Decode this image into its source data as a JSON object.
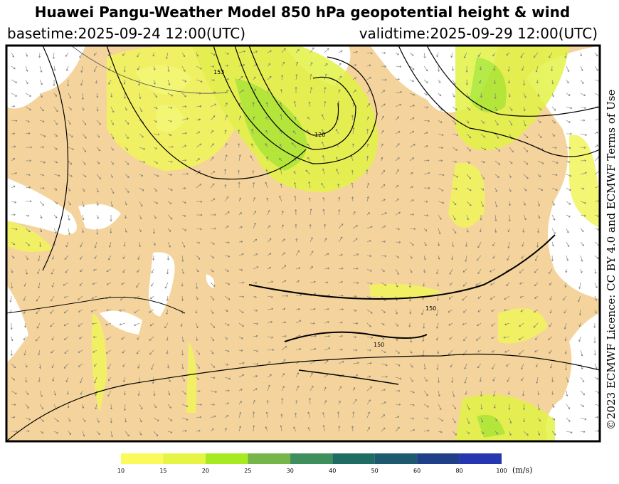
{
  "header": {
    "title": "Huawei Pangu-Weather Model 850 hPa geopotential height & wind",
    "basetime": "basetime:2025-09-24 12:00(UTC)",
    "validtime": "validtime:2025-09-29 12:00(UTC)"
  },
  "licence": "©2023 ECMWF Licence: CC BY 4.0 and ECMWF Terms of Use",
  "contour_labels": [
    "120",
    "150",
    "150",
    "153"
  ],
  "colorbar": {
    "ticks": [
      10,
      15,
      20,
      25,
      30,
      40,
      50,
      60,
      80,
      100
    ],
    "colors": [
      "#fafa5a",
      "#e6f545",
      "#a8ea22",
      "#76b54a",
      "#3f8f5c",
      "#1f6d62",
      "#1d5a70",
      "#1f4088",
      "#2537b0"
    ],
    "unit": "(m/s)"
  }
}
